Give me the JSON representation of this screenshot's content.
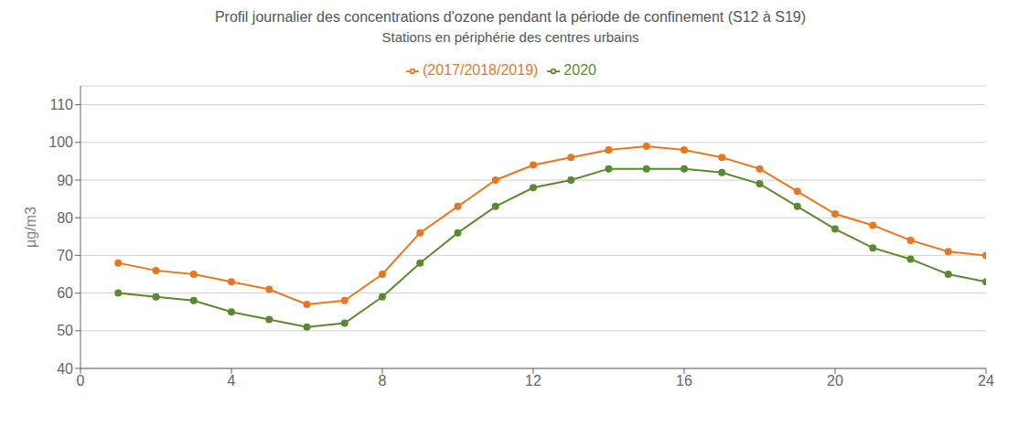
{
  "chart_data": {
    "type": "line",
    "title": "Profil journalier des concentrations d'ozone pendant la période de confinement (S12 à S19)",
    "subtitle": "Stations en périphérie des centres urbains",
    "y_label": "µg/m3",
    "x": [
      1,
      2,
      3,
      4,
      5,
      6,
      7,
      8,
      9,
      10,
      11,
      12,
      13,
      14,
      15,
      16,
      17,
      18,
      19,
      20,
      21,
      22,
      23,
      24
    ],
    "series": [
      {
        "name": "(2017/2018/2019)",
        "color": "#E87722",
        "marker": "circle",
        "values": [
          68,
          66,
          65,
          63,
          61,
          57,
          58,
          65,
          76,
          83,
          90,
          94,
          96,
          98,
          99,
          98,
          96,
          93,
          87,
          81,
          78,
          74,
          71,
          70
        ]
      },
      {
        "name": "2020",
        "color": "#5A8A2F",
        "marker": "circle",
        "values": [
          60,
          59,
          58,
          55,
          53,
          51,
          52,
          59,
          68,
          76,
          83,
          88,
          90,
          93,
          93,
          93,
          92,
          89,
          83,
          77,
          72,
          69,
          65,
          63
        ]
      }
    ],
    "xlim": [
      0,
      24
    ],
    "ylim": [
      40,
      115
    ],
    "xticks": [
      0,
      4,
      8,
      12,
      16,
      20,
      24
    ],
    "yticks": [
      40,
      50,
      60,
      70,
      80,
      90,
      100,
      110
    ],
    "grid": true,
    "legend": "top"
  }
}
